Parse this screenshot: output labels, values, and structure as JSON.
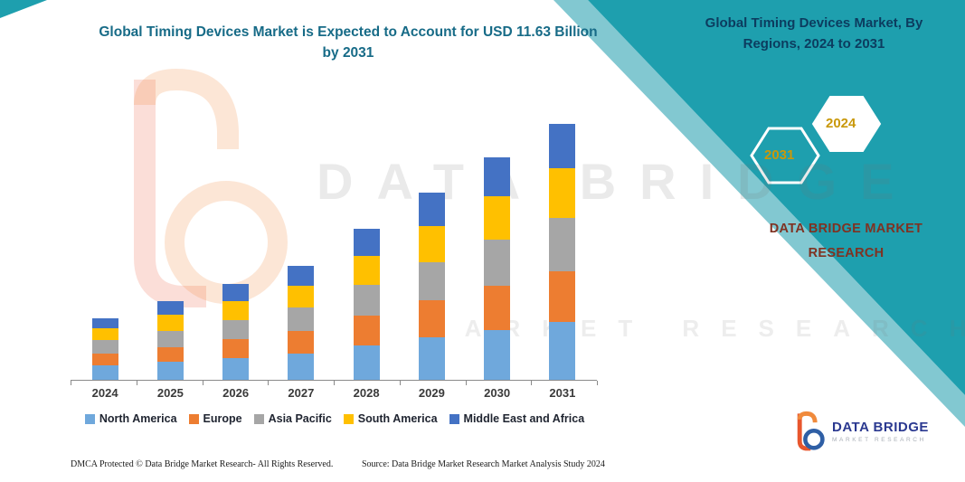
{
  "page": {
    "title_line1": "Global Timing Devices Market is Expected to Account for USD 11.63 Billion",
    "title_line2": "by 2031"
  },
  "side_panel": {
    "heading_line1": "Global Timing Devices Market, By",
    "heading_line2": "Regions, 2024 to 2031",
    "hexagon_back_label": "2031",
    "hexagon_front_label": "2024",
    "brand_line1": "DATA BRIDGE MARKET",
    "brand_line2": "RESEARCH",
    "panel_color": "#1E9FAE",
    "panel_edge_color": "#82C8D1",
    "hexagon_year_color": "#C9980A",
    "brand_text_color": "#7F3222"
  },
  "watermark": {
    "line1": "DATA BRIDGE",
    "line2": "MARKET RESEARCH"
  },
  "chart_data": {
    "type": "bar",
    "stacked": true,
    "title": "Global Timing Devices Market is Expected to Account for USD 11.63 Billion by 2031",
    "xlabel": "",
    "ylabel": "",
    "categories": [
      "2024",
      "2025",
      "2026",
      "2027",
      "2028",
      "2029",
      "2030",
      "2031"
    ],
    "series": [
      {
        "name": "North America",
        "color": "#6FA8DC",
        "values": [
          0.65,
          0.82,
          0.98,
          1.18,
          1.55,
          1.92,
          2.28,
          2.63
        ]
      },
      {
        "name": "Europe",
        "color": "#ED7D31",
        "values": [
          0.55,
          0.68,
          0.85,
          1.02,
          1.35,
          1.68,
          2.0,
          2.3
        ]
      },
      {
        "name": "Asia Pacific",
        "color": "#A6A6A6",
        "values": [
          0.6,
          0.74,
          0.9,
          1.08,
          1.42,
          1.76,
          2.1,
          2.42
        ]
      },
      {
        "name": "South America",
        "color": "#FFC000",
        "values": [
          0.55,
          0.7,
          0.85,
          1.0,
          1.32,
          1.64,
          1.95,
          2.25
        ]
      },
      {
        "name": "Middle East and Africa",
        "color": "#4472C4",
        "values": [
          0.45,
          0.62,
          0.77,
          0.92,
          1.21,
          1.5,
          1.77,
          2.03
        ]
      }
    ],
    "totals": [
      2.8,
      3.56,
      4.35,
      5.2,
      6.85,
      8.5,
      10.1,
      11.63
    ],
    "ylim": [
      0,
      12
    ],
    "grid": false,
    "legend_position": "bottom"
  },
  "footer": {
    "dmca": "DMCA Protected © Data Bridge Market Research-  All Rights Reserved.",
    "source": "Source: Data Bridge Market Research  Market Analysis Study 2024"
  },
  "footer_logo": {
    "brand": "DATA BRIDGE",
    "sub_brand": "MARKET RESEARCH"
  }
}
